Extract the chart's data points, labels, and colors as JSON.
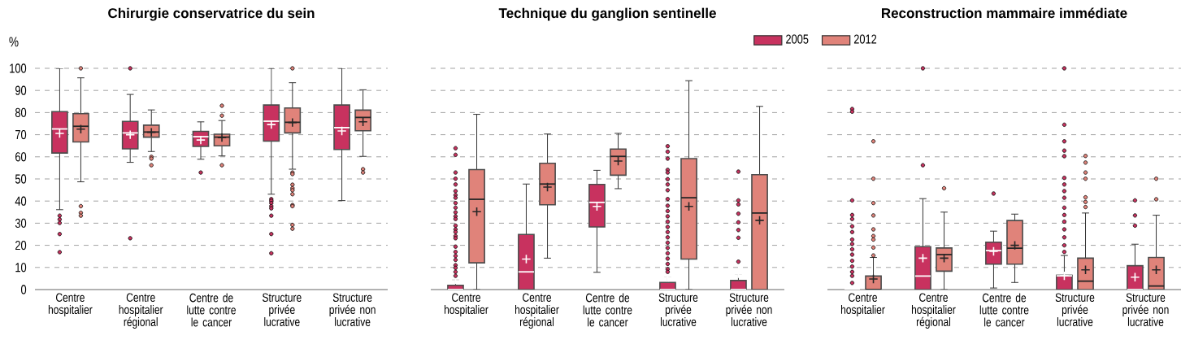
{
  "chart_data": [
    {
      "type": "box",
      "title": "Chirurgie conservatrice du sein",
      "ylabel": "%",
      "categories": [
        "Centre hospitalier",
        "Centre hospitalier régional",
        "Centre de lutte contre le cancer",
        "Structure privée lucrative",
        "Structure privée non lucrative"
      ],
      "ylim": [
        0,
        100
      ],
      "yticks": [
        0,
        10,
        20,
        30,
        40,
        50,
        60,
        70,
        80,
        90,
        100
      ],
      "grid": "y",
      "series": [
        {
          "color": "#c8325f",
          "boxes": [
            {
              "low": 36.1,
              "q1": 61.7,
              "median": 72.6,
              "q3": 80.4,
              "high": 100,
              "mean": 70.6,
              "outliers": [
                33.4,
                31.7,
                30.1,
                25.1,
                16.9
              ]
            },
            {
              "low": 57.5,
              "q1": 63.6,
              "median": 70.8,
              "q3": 76,
              "high": 88.2,
              "mean": 70,
              "outliers": [
                100,
                23.2
              ]
            },
            {
              "low": 58.9,
              "q1": 64.7,
              "median": 69.1,
              "q3": 71.5,
              "high": 75.8,
              "mean": 67.6,
              "outliers": [
                52.9
              ]
            },
            {
              "low": 43.1,
              "q1": 67.1,
              "median": 76.1,
              "q3": 83.4,
              "high": 100,
              "mean": 74.6,
              "outliers": [
                40.9,
                40.1,
                39.1,
                37.7,
                36.7,
                33.4,
                25.1,
                16.4
              ]
            },
            {
              "low": 40.2,
              "q1": 63.3,
              "median": 73.2,
              "q3": 83.4,
              "high": 100,
              "mean": 71.7
            }
          ]
        },
        {
          "color": "#e0837a",
          "boxes": [
            {
              "low": 48.7,
              "q1": 66.7,
              "median": 73.8,
              "q3": 79.5,
              "high": 95.7,
              "mean": 72.5,
              "outliers": [
                100,
                37.7,
                34.7,
                33.4
              ]
            },
            {
              "low": 62.4,
              "q1": 68.9,
              "median": 71.2,
              "q3": 74.3,
              "high": 81.2,
              "mean": 71.1,
              "outliers": [
                60,
                59.2,
                56.2
              ]
            },
            {
              "low": 60.4,
              "q1": 65,
              "median": 68.9,
              "q3": 70.2,
              "high": 76.4,
              "mean": 68.7,
              "outliers": [
                83.1,
                78.6,
                56.2
              ]
            },
            {
              "low": 54.4,
              "q1": 70.8,
              "median": 75.6,
              "q3": 82.1,
              "high": 93.5,
              "mean": 75.5,
              "outliers": [
                100,
                52.9,
                52.2,
                47.4,
                45.8,
                44.9,
                43.1,
                38.2,
                37.7,
                29.2,
                27.5
              ]
            },
            {
              "low": 60.2,
              "q1": 71.8,
              "median": 77.8,
              "q3": 81.1,
              "high": 90.3,
              "mean": 75.8,
              "outliers": [
                54.4,
                52.9
              ]
            }
          ]
        }
      ]
    },
    {
      "type": "box",
      "title": "Technique du ganglion sentinelle",
      "categories": [
        "Centre hospitalier",
        "Centre hospitalier régional",
        "Centre de lutte contre le cancer",
        "Structure privée lucrative",
        "Structure privée non lucrative"
      ],
      "ylim": [
        0,
        100
      ],
      "yticks": [
        0,
        10,
        20,
        30,
        40,
        50,
        60,
        70,
        80,
        90,
        100
      ],
      "grid": "y",
      "tick_labels": "x",
      "series": [
        {
          "color": "#c8325f",
          "boxes": [
            {
              "low": 0,
              "q1": 0,
              "median": 0,
              "q3": 1.9,
              "high": 4.4,
              "mean": 4.4,
              "outliers": [
                63.9,
                60.9,
                52.9,
                50.1,
                47.5,
                44.5,
                42.7,
                41.5,
                39.1,
                37,
                34.9,
                33.1,
                31.9,
                28.9,
                27.2,
                26,
                24.2,
                23.2,
                19.4,
                17,
                15.2,
                13.4,
                11,
                9.8,
                8,
                6.2
              ]
            },
            {
              "low": 0,
              "q1": 0,
              "median": 8,
              "q3": 24.9,
              "high": 47.7,
              "mean": 13.8
            },
            {
              "low": 7.8,
              "q1": 28.3,
              "median": 39.4,
              "q3": 47.5,
              "high": 53.9,
              "mean": 37.6
            },
            {
              "low": 0,
              "q1": 0,
              "median": 0,
              "q3": 3.2,
              "high": 5.4,
              "mean": 5.4,
              "outliers": [
                64.8,
                62.3,
                59.2,
                54.1,
                52.9,
                49.9,
                47.5,
                44.9,
                40.9,
                37.9,
                35.5,
                33.1,
                30.7,
                28.3,
                26,
                23.6,
                21.2,
                18.8,
                16.4,
                14,
                11.6,
                9.2,
                8
              ]
            },
            {
              "low": 0,
              "q1": 0,
              "median": 0,
              "q3": 4.1,
              "high": 7.1,
              "mean": 7.1,
              "outliers": [
                53.3,
                40.3,
                38.5,
                34.3,
                30.4,
                26.9,
                23.4,
                12.6
              ]
            }
          ]
        },
        {
          "color": "#e0837a",
          "boxes": [
            {
              "low": 0,
              "q1": 12.1,
              "median": 40.8,
              "q3": 54.2,
              "high": 79.2,
              "mean": 35.2
            },
            {
              "low": 14.2,
              "q1": 38.3,
              "median": 47.7,
              "q3": 57.1,
              "high": 70.3,
              "mean": 46.3
            },
            {
              "low": 45.6,
              "q1": 51.7,
              "median": 60.2,
              "q3": 63.5,
              "high": 70.6,
              "mean": 58.1
            },
            {
              "low": 0,
              "q1": 13.8,
              "median": 41.5,
              "q3": 59.2,
              "high": 94.4,
              "mean": 37.6
            },
            {
              "low": 0,
              "q1": 0,
              "median": 34.6,
              "q3": 51.9,
              "high": 82.8,
              "mean": 31.3
            }
          ]
        }
      ]
    },
    {
      "type": "box",
      "title": "Reconstruction mammaire immédiate",
      "categories": [
        "Centre hospitalier",
        "Centre hospitalier régional",
        "Centre de lutte contre le cancer",
        "Structure privée lucrative",
        "Structure privée non lucrative"
      ],
      "ylim": [
        0,
        100
      ],
      "yticks": [
        0,
        10,
        20,
        30,
        40,
        50,
        60,
        70,
        80,
        90,
        100
      ],
      "grid": "y",
      "tick_labels": "x",
      "legend": "top left",
      "series": [
        {
          "name": "2005",
          "color": "#c8325f",
          "boxes": [
            {
              "low": 0,
              "q1": 0,
              "median": 0,
              "q3": 0,
              "high": 0,
              "outliers": [
                81.6,
                80.4,
                40.3,
                33.7,
                31.9,
                28.6,
                26,
                22.6,
                20.6,
                18.2,
                15.8,
                13,
                10.4,
                8,
                6.2,
                3
              ]
            },
            {
              "low": 0,
              "q1": 0,
              "median": 6.1,
              "q3": 19.4,
              "high": 41.1,
              "mean": 14.2,
              "outliers": [
                100,
                56.2
              ]
            },
            {
              "low": 0.7,
              "q1": 11.5,
              "median": 17.6,
              "q3": 21.4,
              "high": 26.4,
              "mean": 17.3,
              "outliers": [
                43.4
              ]
            },
            {
              "low": 0,
              "q1": 0,
              "median": 6.2,
              "q3": 6.5,
              "high": 15.4,
              "mean": 6.2,
              "outliers": [
                100,
                74.5,
                67,
                62.8,
                60.3,
                50.5,
                47.5,
                44.5,
                41.5,
                37,
                33.7,
                30.7,
                27.2,
                23.6,
                20,
                17
              ]
            },
            {
              "low": 0,
              "q1": 0,
              "median": 0,
              "q3": 10.8,
              "high": 20.5,
              "mean": 5.6,
              "outliers": [
                40.3,
                33.5,
                28.9
              ]
            }
          ]
        },
        {
          "name": "2012",
          "color": "#e0837a",
          "boxes": [
            {
              "low": 0,
              "q1": 0,
              "median": 0,
              "q3": 6.1,
              "high": 14.5,
              "mean": 4.8,
              "outliers": [
                67,
                50.1,
                39.1,
                33.5,
                27.2,
                24.2,
                22.6,
                19,
                15.4
              ]
            },
            {
              "low": 0,
              "q1": 8.3,
              "median": 15.8,
              "q3": 18.8,
              "high": 35,
              "mean": 14.2,
              "outliers": [
                45.8
              ]
            },
            {
              "low": 3.2,
              "q1": 11.5,
              "median": 18.7,
              "q3": 31.2,
              "high": 34.1,
              "mean": 20
            },
            {
              "low": 0,
              "q1": 0,
              "median": 3.8,
              "q3": 14.2,
              "high": 34.6,
              "mean": 8.9,
              "outliers": [
                60.4,
                57.4,
                52.9,
                50.1,
                41.7,
                39.6,
                37.3
              ]
            },
            {
              "low": 0,
              "q1": 0,
              "median": 1.6,
              "q3": 14.5,
              "high": 33.6,
              "mean": 8.9,
              "outliers": [
                50.1,
                40.8
              ]
            }
          ]
        }
      ]
    }
  ]
}
